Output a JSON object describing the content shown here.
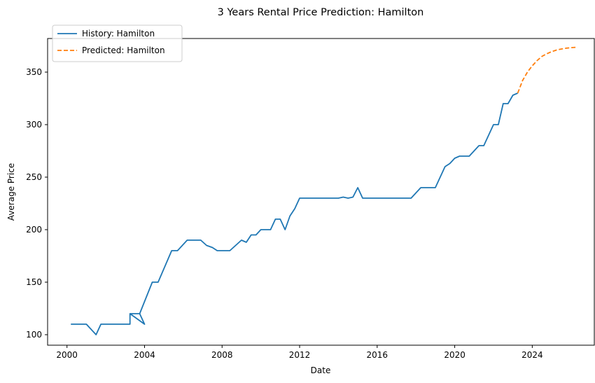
{
  "chart_data": {
    "type": "line",
    "title": "3 Years Rental Price Prediction: Hamilton",
    "xlabel": "Date",
    "ylabel": "Average Price",
    "xlim": [
      1999.0,
      2027.2
    ],
    "ylim": [
      90,
      382
    ],
    "x_ticks": [
      2000,
      2004,
      2008,
      2012,
      2016,
      2020,
      2024
    ],
    "y_ticks": [
      100,
      150,
      200,
      250,
      300,
      350
    ],
    "grid": false,
    "legend_position": "top-left",
    "series": [
      {
        "name": "History: Hamilton",
        "color": "#1f77b4",
        "style": "solid",
        "points": [
          [
            2000.2,
            110
          ],
          [
            2001.0,
            110
          ],
          [
            2001.5,
            100
          ],
          [
            2001.75,
            110
          ],
          [
            2003.25,
            110
          ],
          [
            2003.25,
            120
          ],
          [
            2003.75,
            120
          ],
          [
            2004.0,
            110
          ],
          [
            2003.25,
            120
          ],
          [
            2003.75,
            120
          ],
          [
            2004.4,
            150
          ],
          [
            2004.7,
            150
          ],
          [
            2005.4,
            180
          ],
          [
            2005.7,
            180
          ],
          [
            2006.2,
            190
          ],
          [
            2006.9,
            190
          ],
          [
            2007.2,
            185
          ],
          [
            2007.5,
            183
          ],
          [
            2007.75,
            180
          ],
          [
            2008.4,
            180
          ],
          [
            2009.0,
            190
          ],
          [
            2009.25,
            188
          ],
          [
            2009.5,
            195
          ],
          [
            2009.75,
            195
          ],
          [
            2010.0,
            200
          ],
          [
            2010.5,
            200
          ],
          [
            2010.75,
            210
          ],
          [
            2011.0,
            210
          ],
          [
            2011.25,
            200
          ],
          [
            2011.5,
            213
          ],
          [
            2011.75,
            220
          ],
          [
            2012.0,
            230
          ],
          [
            2014.0,
            230
          ],
          [
            2014.25,
            231
          ],
          [
            2014.5,
            230
          ],
          [
            2014.75,
            231
          ],
          [
            2015.0,
            240
          ],
          [
            2015.25,
            230
          ],
          [
            2017.75,
            230
          ],
          [
            2018.25,
            240
          ],
          [
            2019.0,
            240
          ],
          [
            2019.5,
            260
          ],
          [
            2019.75,
            263
          ],
          [
            2020.0,
            268
          ],
          [
            2020.25,
            270
          ],
          [
            2020.75,
            270
          ],
          [
            2021.25,
            280
          ],
          [
            2021.5,
            280
          ],
          [
            2022.0,
            300
          ],
          [
            2022.25,
            300
          ],
          [
            2022.5,
            320
          ],
          [
            2022.75,
            320
          ],
          [
            2023.0,
            328
          ],
          [
            2023.25,
            330
          ]
        ]
      },
      {
        "name": "Predicted: Hamilton",
        "color": "#ff7f0e",
        "style": "dashed",
        "points": [
          [
            2023.25,
            330
          ],
          [
            2023.5,
            342
          ],
          [
            2023.75,
            350
          ],
          [
            2024.0,
            356
          ],
          [
            2024.25,
            361
          ],
          [
            2024.5,
            365
          ],
          [
            2024.75,
            367.5
          ],
          [
            2025.0,
            369.5
          ],
          [
            2025.25,
            371
          ],
          [
            2025.5,
            372
          ],
          [
            2025.75,
            372.8
          ],
          [
            2026.0,
            373.3
          ],
          [
            2026.25,
            373.6
          ]
        ]
      }
    ]
  }
}
